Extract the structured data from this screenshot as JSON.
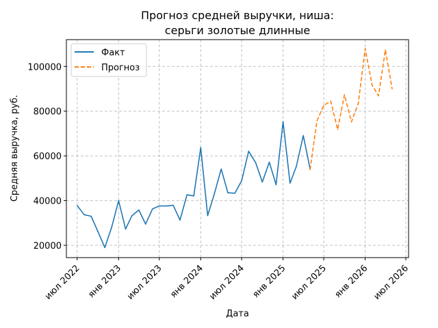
{
  "chart_data": {
    "type": "line",
    "title_lines": [
      "Прогноз средней выручки, ниша:",
      "серьги золотые длинные"
    ],
    "xlabel": "Дата",
    "ylabel": "Средняя выручка, руб.",
    "x_ticks": [
      {
        "date": "2022-07-01",
        "label": "июл 2022"
      },
      {
        "date": "2023-01-01",
        "label": "янв 2023"
      },
      {
        "date": "2023-07-01",
        "label": "июл 2023"
      },
      {
        "date": "2024-01-01",
        "label": "янв 2024"
      },
      {
        "date": "2024-07-01",
        "label": "июл 2024"
      },
      {
        "date": "2025-01-01",
        "label": "янв 2025"
      },
      {
        "date": "2025-07-01",
        "label": "июл 2025"
      },
      {
        "date": "2026-01-01",
        "label": "янв 2026"
      },
      {
        "date": "2026-07-01",
        "label": "июл 2026"
      }
    ],
    "y_ticks": [
      20000,
      40000,
      60000,
      80000,
      100000
    ],
    "xlim": [
      "2022-05-14",
      "2026-07-13"
    ],
    "ylim": [
      14500,
      112000
    ],
    "grid": true,
    "legend_position": "top-left",
    "series": [
      {
        "name": "Факт",
        "color": "#1f77b4",
        "style": "solid",
        "points": [
          [
            "2022-07-01",
            37800
          ],
          [
            "2022-08-01",
            33700
          ],
          [
            "2022-09-01",
            33000
          ],
          [
            "2022-10-01",
            26200
          ],
          [
            "2022-11-01",
            19000
          ],
          [
            "2022-12-01",
            28000
          ],
          [
            "2023-01-01",
            40000
          ],
          [
            "2023-02-01",
            27300
          ],
          [
            "2023-03-01",
            33200
          ],
          [
            "2023-04-01",
            35800
          ],
          [
            "2023-05-01",
            29500
          ],
          [
            "2023-06-01",
            36300
          ],
          [
            "2023-07-01",
            37600
          ],
          [
            "2023-08-01",
            37600
          ],
          [
            "2023-09-01",
            37900
          ],
          [
            "2023-10-01",
            31300
          ],
          [
            "2023-11-01",
            42600
          ],
          [
            "2023-12-01",
            42100
          ],
          [
            "2024-01-01",
            63700
          ],
          [
            "2024-02-01",
            33300
          ],
          [
            "2024-03-01",
            42800
          ],
          [
            "2024-04-01",
            54100
          ],
          [
            "2024-05-01",
            43500
          ],
          [
            "2024-06-01",
            43300
          ],
          [
            "2024-07-01",
            48900
          ],
          [
            "2024-08-01",
            62100
          ],
          [
            "2024-09-01",
            57000
          ],
          [
            "2024-10-01",
            48300
          ],
          [
            "2024-11-01",
            57200
          ],
          [
            "2024-12-01",
            47100
          ],
          [
            "2025-01-01",
            75300
          ],
          [
            "2025-02-01",
            47800
          ],
          [
            "2025-03-01",
            55300
          ],
          [
            "2025-04-01",
            69100
          ],
          [
            "2025-05-01",
            54300
          ]
        ]
      },
      {
        "name": "Прогноз",
        "color": "#ff7f0e",
        "style": "dashed",
        "points": [
          [
            "2025-05-01",
            53800
          ],
          [
            "2025-06-01",
            75700
          ],
          [
            "2025-07-01",
            82600
          ],
          [
            "2025-08-01",
            84500
          ],
          [
            "2025-09-01",
            71800
          ],
          [
            "2025-10-01",
            87300
          ],
          [
            "2025-11-01",
            75200
          ],
          [
            "2025-12-01",
            83300
          ],
          [
            "2026-01-01",
            108000
          ],
          [
            "2026-02-01",
            91600
          ],
          [
            "2026-03-01",
            86900
          ],
          [
            "2026-04-01",
            107400
          ],
          [
            "2026-05-01",
            90000
          ]
        ]
      }
    ]
  }
}
